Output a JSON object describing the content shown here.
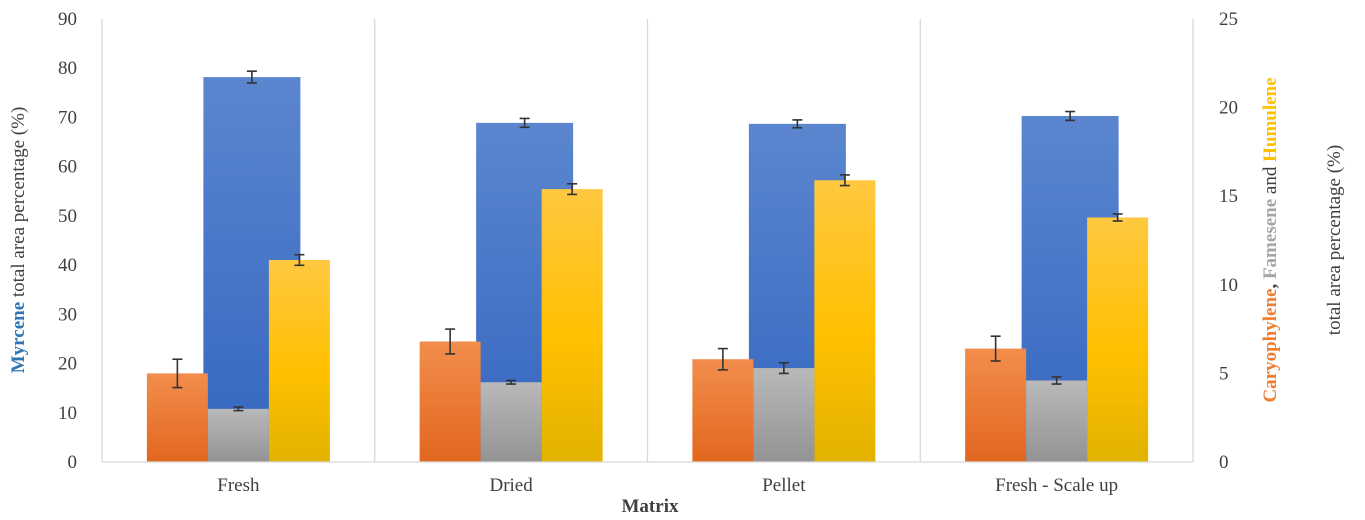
{
  "chart_data": {
    "type": "bar",
    "title": "",
    "xlabel": "Matrix",
    "categories": [
      "Fresh",
      "Dried",
      "Pellet",
      "Fresh - Scale up"
    ],
    "y_left": {
      "ticks": [
        "0",
        "10",
        "20",
        "30",
        "40",
        "50",
        "60",
        "70",
        "80",
        "90"
      ],
      "ylim": [
        0,
        90
      ],
      "label_parts": [
        {
          "text": "Myrcene",
          "color": "#2E75B6",
          "bold": true
        },
        {
          "text": " total area percentage (%)",
          "color": "#404040",
          "bold": false
        }
      ]
    },
    "y_right": {
      "ticks": [
        "0",
        "5",
        "10",
        "15",
        "20",
        "25"
      ],
      "ylim": [
        0,
        25
      ],
      "label_line1": [
        {
          "text": "Caryophylene",
          "color": "#ED7D31",
          "bold": true
        },
        {
          "text": ", ",
          "color": "#404040",
          "bold": true
        },
        {
          "text": "Famesene",
          "color": "#A5A5A5",
          "bold": true
        },
        {
          "text": " and ",
          "color": "#404040",
          "bold": false
        },
        {
          "text": "Humulene",
          "color": "#FFC000",
          "bold": true
        }
      ],
      "label_line2": "total area percentage (%)"
    },
    "grid": "vertical separators between categories",
    "legend": "none",
    "series": [
      {
        "name": "Myrcene",
        "axis": "left",
        "color": "#4472C4",
        "values": [
          78.2,
          68.9,
          68.7,
          70.3
        ],
        "errors": [
          1.2,
          0.9,
          0.8,
          0.9
        ]
      },
      {
        "name": "Caryophylene",
        "axis": "right",
        "color": "#ED7D31",
        "values": [
          5.0,
          6.8,
          5.8,
          6.4
        ],
        "errors": [
          0.8,
          0.7,
          0.6,
          0.7
        ]
      },
      {
        "name": "Famesene",
        "axis": "right",
        "color": "#A5A5A5",
        "values": [
          3.0,
          4.5,
          5.3,
          4.6
        ],
        "errors": [
          0.1,
          0.1,
          0.3,
          0.2
        ]
      },
      {
        "name": "Humulene",
        "axis": "right",
        "color": "#FFC000",
        "values": [
          11.4,
          15.4,
          15.9,
          13.8
        ],
        "errors": [
          0.3,
          0.3,
          0.3,
          0.2
        ]
      }
    ]
  }
}
